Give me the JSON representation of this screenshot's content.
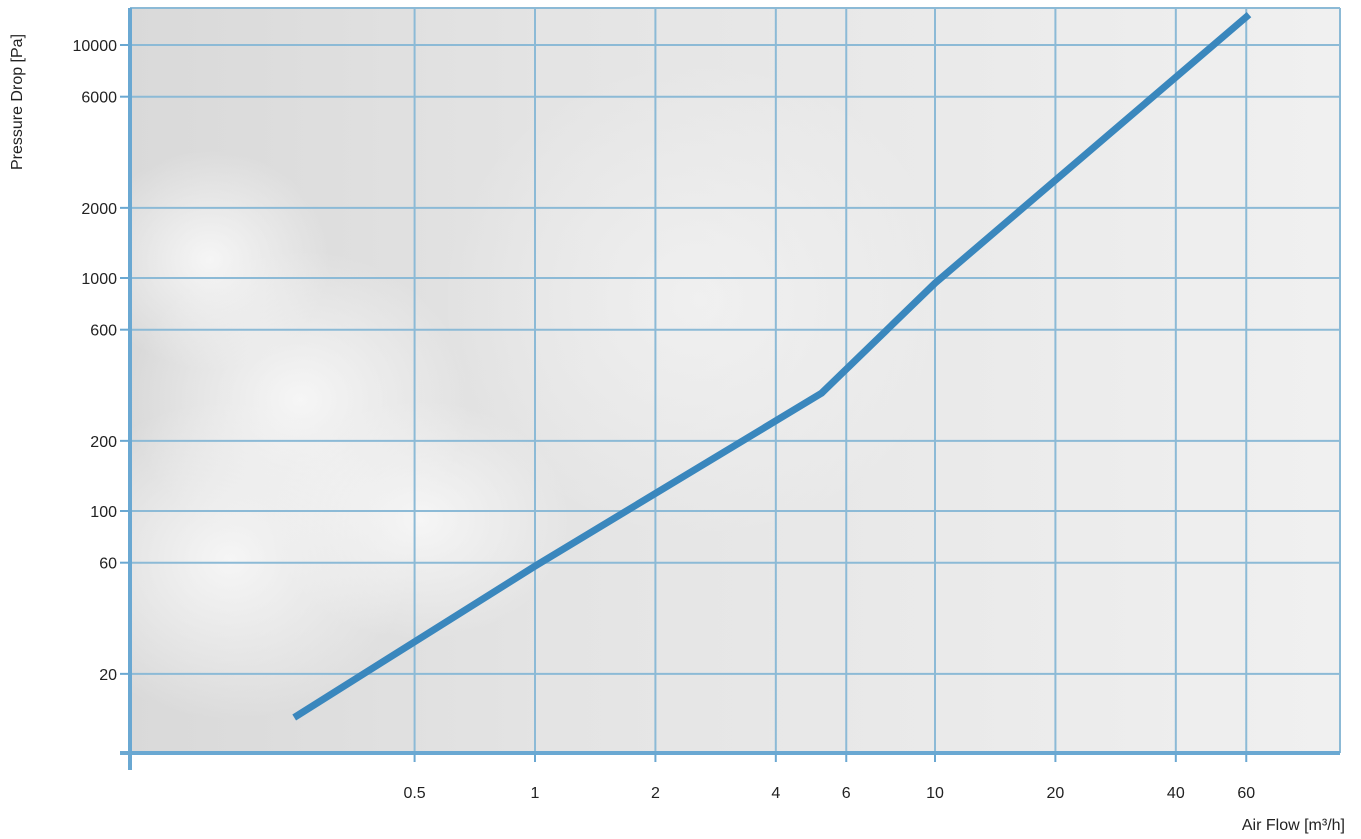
{
  "chart_data": {
    "type": "line",
    "xlabel": "Air Flow [m³/h]",
    "ylabel": "Pressure Drop [Pa]",
    "xscale": "log",
    "yscale": "log",
    "xlim": [
      0.1,
      100
    ],
    "ylim": [
      8,
      13500
    ],
    "x_ticks": [
      0.5,
      1,
      2,
      4,
      6,
      10,
      20,
      40,
      60
    ],
    "x_tick_labels": [
      "0.5",
      "1",
      "2",
      "4",
      "6",
      "10",
      "20",
      "40",
      "60"
    ],
    "y_ticks": [
      20,
      60,
      100,
      200,
      600,
      1000,
      2000,
      6000,
      10000
    ],
    "y_tick_labels": [
      "20",
      "60",
      "100",
      "200",
      "600",
      "1000",
      "2000",
      "6000",
      "10000"
    ],
    "grid": true,
    "legend": "none",
    "series": [
      {
        "color": "#3a87bd",
        "x": [
          0.25,
          1,
          5.2,
          10,
          64
        ],
        "y": [
          13,
          58,
          320,
          950,
          13500
        ]
      }
    ]
  },
  "colors": {
    "plot_background": "#ececec",
    "grid": "#8cbad6",
    "axis": "#6aa8d2",
    "line": "#3a87bd"
  }
}
